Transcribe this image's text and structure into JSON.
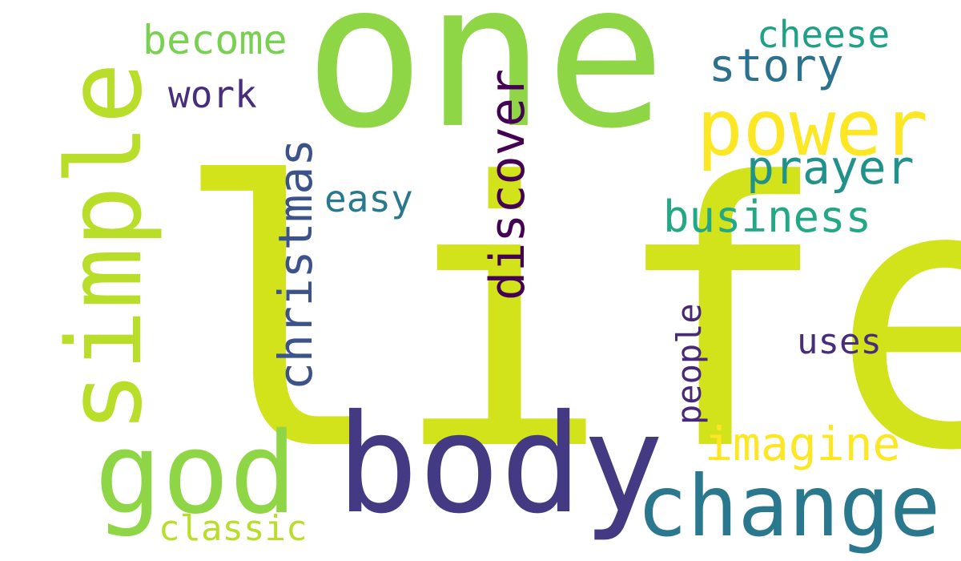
{
  "words": [
    {
      "key": "life",
      "text": "life",
      "color": "#D2E21B"
    },
    {
      "key": "one",
      "text": "one",
      "color": "#8ED645"
    },
    {
      "key": "body",
      "text": "body",
      "color": "#443A83"
    },
    {
      "key": "god",
      "text": "god",
      "color": "#8ED645"
    },
    {
      "key": "simple",
      "text": "simple",
      "color": "#B8DE29"
    },
    {
      "key": "change",
      "text": "change",
      "color": "#2A788E"
    },
    {
      "key": "power",
      "text": "power",
      "color": "#FDE725"
    },
    {
      "key": "imagine",
      "text": "imagine",
      "color": "#FDE725"
    },
    {
      "key": "discover",
      "text": "discover",
      "color": "#440154"
    },
    {
      "key": "christmas",
      "text": "christmas",
      "color": "#3B528B"
    },
    {
      "key": "business",
      "text": "business",
      "color": "#22A884"
    },
    {
      "key": "prayer",
      "text": "prayer",
      "color": "#21918C"
    },
    {
      "key": "story",
      "text": "story",
      "color": "#2C728E"
    },
    {
      "key": "become",
      "text": "become",
      "color": "#7AD151"
    },
    {
      "key": "cheese",
      "text": "cheese",
      "color": "#1FA187"
    },
    {
      "key": "work",
      "text": "work",
      "color": "#472D7B"
    },
    {
      "key": "easy",
      "text": "easy",
      "color": "#2A788E"
    },
    {
      "key": "people",
      "text": "people",
      "color": "#482878"
    },
    {
      "key": "uses",
      "text": "uses",
      "color": "#472D7B"
    },
    {
      "key": "classic",
      "text": "classic",
      "color": "#B8DE29"
    }
  ]
}
